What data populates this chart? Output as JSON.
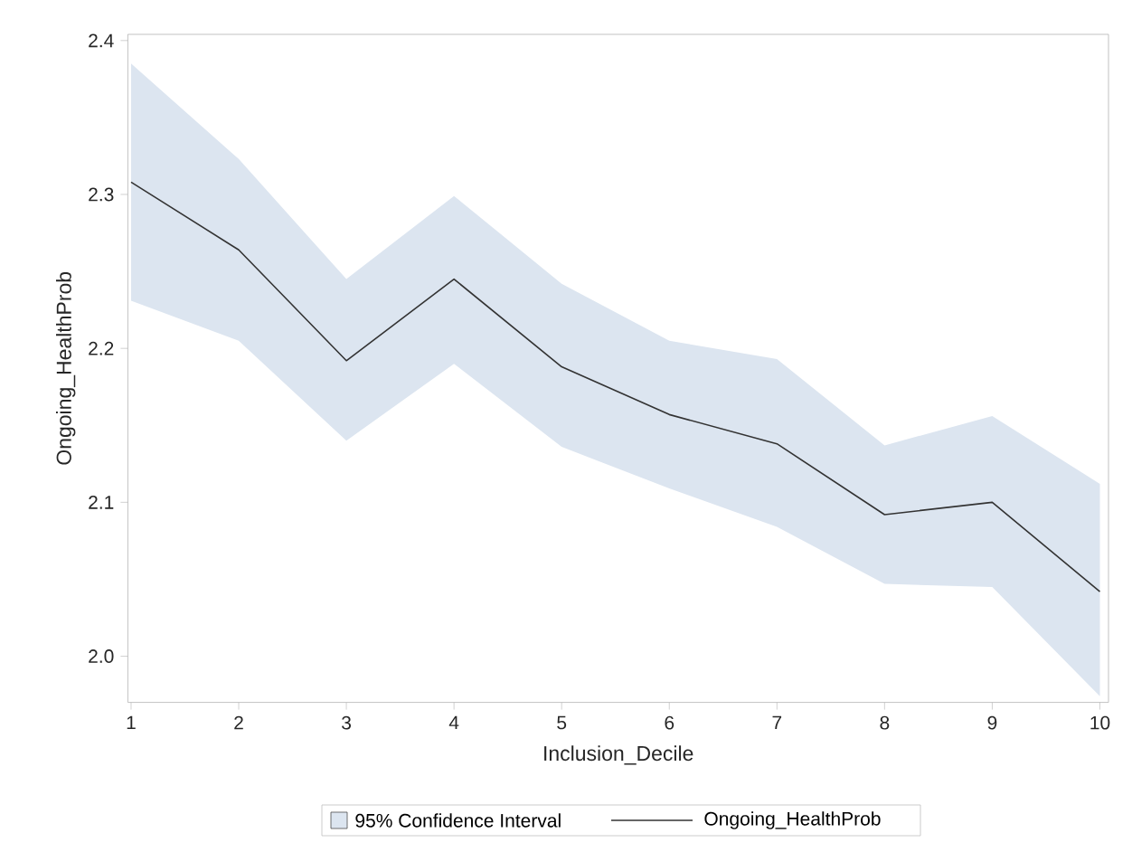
{
  "chart_data": {
    "type": "line",
    "xlabel": "Inclusion_Decile",
    "ylabel": "Ongoing_HealthProb",
    "x": [
      1,
      2,
      3,
      4,
      5,
      6,
      7,
      8,
      9,
      10
    ],
    "annotations": [
      "95% Confidence Interval"
    ],
    "series": [
      {
        "name": "Ongoing_HealthProb",
        "color": "#333333",
        "values": [
          2.308,
          2.264,
          2.192,
          2.245,
          2.188,
          2.157,
          2.138,
          2.092,
          2.1,
          2.042
        ],
        "lower": [
          2.231,
          2.205,
          2.14,
          2.19,
          2.136,
          2.109,
          2.084,
          2.047,
          2.045,
          1.974
        ],
        "upper": [
          2.385,
          2.323,
          2.245,
          2.299,
          2.242,
          2.205,
          2.193,
          2.137,
          2.156,
          2.112
        ]
      }
    ],
    "xlim": [
      0.97,
      10.08
    ],
    "ylim": [
      1.97,
      2.404
    ],
    "xticks": [
      1,
      2,
      3,
      4,
      5,
      6,
      7,
      8,
      9,
      10
    ],
    "yticks": [
      {
        "value": 2.0,
        "label": "2.0"
      },
      {
        "value": 2.1,
        "label": "2.1"
      },
      {
        "value": 2.2,
        "label": "2.2"
      },
      {
        "value": 2.3,
        "label": "2.3"
      },
      {
        "value": 2.4,
        "label": "2.4"
      }
    ],
    "legend": "bottom",
    "grid": false,
    "marker": "none",
    "line_style": "solid"
  }
}
